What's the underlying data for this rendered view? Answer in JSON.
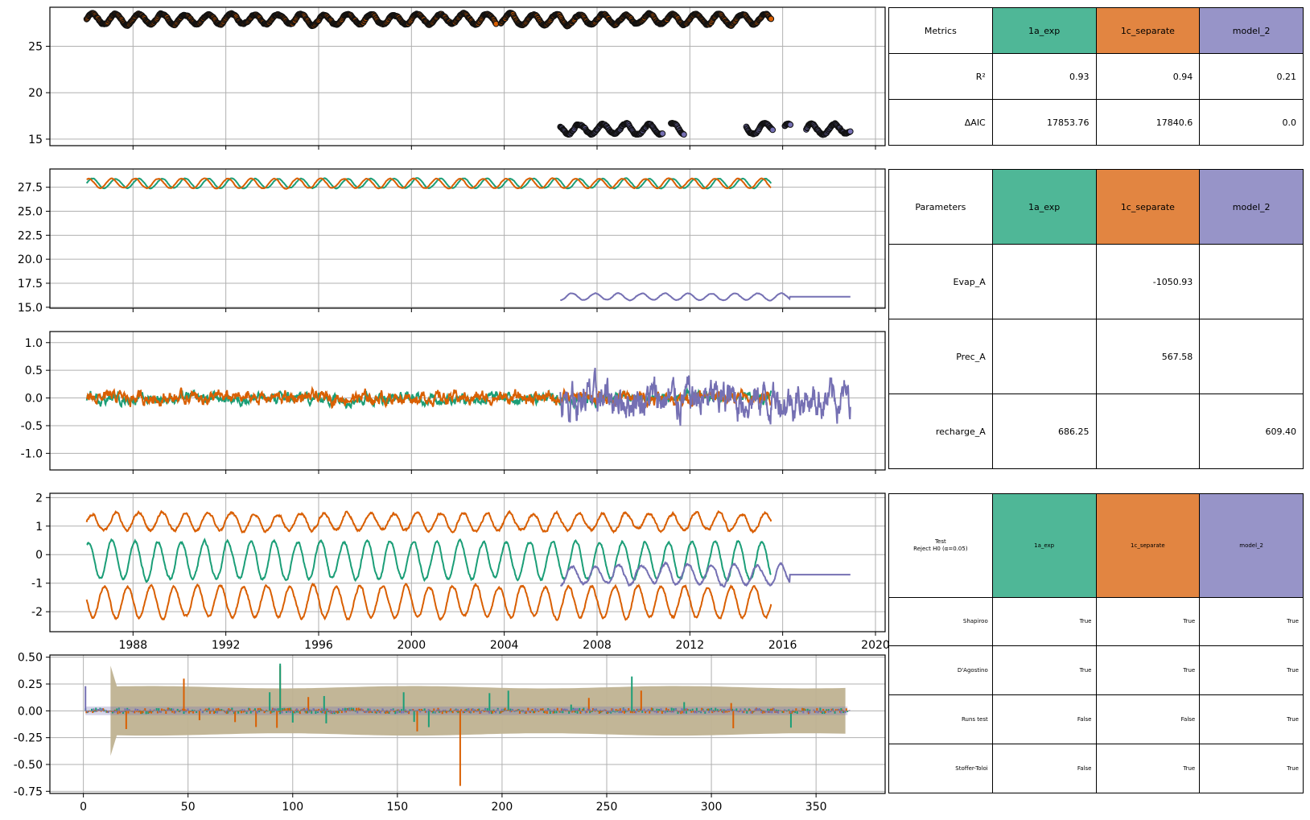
{
  "colors": {
    "1a_exp": "#1b9e77",
    "1c_separate": "#d95f02",
    "model_2": "#7570b3",
    "header_1a_exp": "#4fb797",
    "header_1c_separate": "#e28541",
    "header_model_2": "#9794c8",
    "ci_band": "#bfb291",
    "grid": "#b0b0b0"
  },
  "chart_data": [
    {
      "panel": "observations-and-simulations",
      "type": "scatter",
      "x_type": "date",
      "xlim": [
        "1984-06",
        "2020-06"
      ],
      "ylim": [
        14.3,
        29.2
      ],
      "yticks": [
        15,
        20,
        25
      ],
      "grid": true,
      "series": [
        {
          "key": "1c_separate",
          "marker": "circle",
          "x_start": "1986-01",
          "x_end": "2015-07",
          "baseline": 27.9,
          "amplitude": 0.55,
          "gaps": [
            [
              "2003-09",
              "2003-11"
            ]
          ]
        },
        {
          "key": "model_2",
          "marker": "circle",
          "x_start": "2006-06",
          "x_end": "2018-12",
          "baseline": 16.1,
          "amplitude": 0.55,
          "gaps": [
            [
              "2010-11",
              "2011-03"
            ],
            [
              "2011-10",
              "2014-06"
            ],
            [
              "2015-08",
              "2016-02"
            ],
            [
              "2016-05",
              "2017-01"
            ]
          ]
        }
      ]
    },
    {
      "panel": "simulations",
      "type": "line",
      "x_type": "date",
      "xlim": [
        "1984-06",
        "2020-06"
      ],
      "ylim": [
        14.9,
        29.4
      ],
      "yticks": [
        15.0,
        17.5,
        20.0,
        22.5,
        25.0,
        27.5
      ],
      "grid": true,
      "series": [
        {
          "key": "1a_exp",
          "x_start": "1986-01",
          "x_end": "2015-07",
          "baseline": 27.9,
          "amplitude": 0.5
        },
        {
          "key": "1c_separate",
          "x_start": "1986-01",
          "x_end": "2015-07",
          "baseline": 27.9,
          "amplitude": 0.5
        },
        {
          "key": "model_2",
          "x_start": "2006-06",
          "x_end": "2018-12",
          "baseline": 16.1,
          "amplitude": 0.35
        }
      ]
    },
    {
      "panel": "residuals",
      "type": "line",
      "x_type": "date",
      "xlim": [
        "1984-06",
        "2020-06"
      ],
      "ylim": [
        -1.3,
        1.2
      ],
      "yticks": [
        -1.0,
        -0.5,
        0.0,
        0.5,
        1.0
      ],
      "grid": true,
      "series": [
        {
          "key": "1a_exp",
          "x_start": "1986-01",
          "x_end": "2015-07",
          "range": [
            -0.35,
            0.3
          ]
        },
        {
          "key": "1c_separate",
          "x_start": "1986-01",
          "x_end": "2015-07",
          "range": [
            -0.35,
            0.4
          ]
        },
        {
          "key": "model_2",
          "x_start": "2006-06",
          "x_end": "2018-12",
          "range": [
            -1.2,
            1.05
          ]
        }
      ]
    },
    {
      "panel": "contributions",
      "type": "line",
      "x_type": "date",
      "xlim": [
        "1984-06",
        "2020-06"
      ],
      "xticks": [
        "1988",
        "1992",
        "1996",
        "2000",
        "2004",
        "2008",
        "2012",
        "2016",
        "2020"
      ],
      "ylim": [
        -2.7,
        2.15
      ],
      "yticks": [
        -2,
        -1,
        0,
        1,
        2
      ],
      "grid": true,
      "series": [
        {
          "key": "1c_separate",
          "label": "upper",
          "x_start": "1986-01",
          "x_end": "2015-07",
          "baseline": 1.15,
          "amplitude": 0.3
        },
        {
          "key": "1a_exp",
          "x_start": "1986-01",
          "x_end": "2015-07",
          "baseline": -0.2,
          "amplitude": 0.65
        },
        {
          "key": "model_2",
          "x_start": "2006-06",
          "x_end": "2018-12",
          "baseline": -0.7,
          "amplitude": 0.35
        },
        {
          "key": "1c_separate",
          "label": "lower",
          "x_start": "1986-01",
          "x_end": "2015-07",
          "baseline": -1.65,
          "amplitude": 0.55
        }
      ]
    },
    {
      "panel": "autocorrelation",
      "type": "bar",
      "xlim": [
        -16,
        383
      ],
      "xticks": [
        0,
        50,
        100,
        150,
        200,
        250,
        300,
        350
      ],
      "ylim": [
        -0.77,
        0.52
      ],
      "yticks": [
        0.5,
        0.25,
        0.0,
        -0.25,
        -0.5,
        -0.75
      ],
      "grid": true,
      "lag_max": 365,
      "confidence_band": {
        "from_lag": 13,
        "start_half_width": 0.42,
        "half_width": 0.22
      },
      "spikes": [
        {
          "key": "1c_separate",
          "lag": 180,
          "value": -0.7
        },
        {
          "key": "1c_separate",
          "lag": 94,
          "value": 0.42
        },
        {
          "key": "1a_exp",
          "lag": 94,
          "value": 0.44
        },
        {
          "key": "1c_separate",
          "lag": 48,
          "value": 0.3
        },
        {
          "key": "1a_exp",
          "lag": 262,
          "value": 0.32
        },
        {
          "key": "model_2",
          "lag": 1,
          "value": 0.23
        }
      ]
    }
  ],
  "tables": {
    "metrics": {
      "header": "Metrics",
      "models": [
        "1a_exp",
        "1c_separate",
        "model_2"
      ],
      "rows": [
        {
          "label": "R²",
          "values": [
            "0.93",
            "0.94",
            "0.21"
          ]
        },
        {
          "label": "ΔAIC",
          "values": [
            "17853.76",
            "17840.6",
            "0.0"
          ]
        }
      ]
    },
    "parameters": {
      "header": "Parameters",
      "models": [
        "1a_exp",
        "1c_separate",
        "model_2"
      ],
      "rows": [
        {
          "label": "Evap_A",
          "values": [
            "",
            "-1050.93",
            ""
          ]
        },
        {
          "label": "Prec_A",
          "values": [
            "",
            "567.58",
            ""
          ]
        },
        {
          "label": "recharge_A",
          "values": [
            "686.25",
            "",
            "609.40"
          ]
        }
      ]
    },
    "tests": {
      "header_line1": "Test",
      "header_line2": "Reject H0 (α=0.05)",
      "models": [
        "1a_exp",
        "1c_separate",
        "model_2"
      ],
      "rows": [
        {
          "label": "Shapiroo",
          "values": [
            "True",
            "True",
            "True"
          ]
        },
        {
          "label": "D'Agostino",
          "values": [
            "True",
            "True",
            "True"
          ]
        },
        {
          "label": "Runs test",
          "values": [
            "False",
            "False",
            "True"
          ]
        },
        {
          "label": "Stoffer-Toloi",
          "values": [
            "False",
            "True",
            "True"
          ]
        }
      ]
    }
  }
}
